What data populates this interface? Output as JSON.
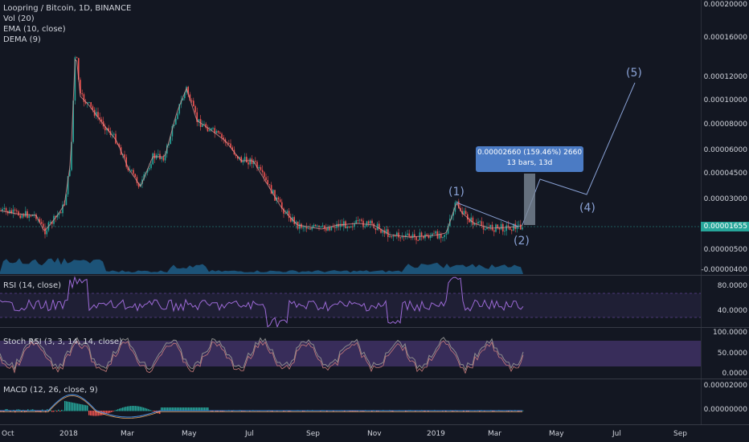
{
  "header": {
    "symbol_line": "Loopring / Bitcoin, 1D, BINANCE",
    "vol_line": "Vol (20)",
    "ema_line": "EMA (10, close)",
    "dema_line": "DEMA (9)"
  },
  "price_axis": {
    "ticks": [
      "0.00020000",
      "0.00016000",
      "0.00012000",
      "0.00010000",
      "0.00008000",
      "0.00006000",
      "0.00004500",
      "0.00003000",
      "0.00001655",
      "0.00000500",
      "-0.00000400"
    ],
    "current_price": "0.00001655"
  },
  "rsi": {
    "label": "RSI (14, close)",
    "ticks": [
      "80.0000",
      "40.0000"
    ]
  },
  "stoch": {
    "label": "Stoch RSI (3, 3, 14, 14, close)",
    "ticks": [
      "100.0000",
      "50.0000",
      "0.0000"
    ]
  },
  "macd": {
    "label": "MACD (12, 26, close, 9)",
    "ticks": [
      "0.00002000",
      "0.00000000"
    ]
  },
  "time_axis": [
    "Oct",
    "2018",
    "Mar",
    "May",
    "Jul",
    "Sep",
    "Nov",
    "2019",
    "Mar",
    "May",
    "Jul",
    "Sep"
  ],
  "drawing": {
    "measure_line1": "0.00002660 (159.46%) 2660",
    "measure_line2": "13 bars, 13d",
    "waves": [
      "(1)",
      "(2)",
      "(4)",
      "(5)"
    ]
  },
  "colors": {
    "bull": "#26a69a",
    "bear": "#ef5350",
    "background": "#131722",
    "rsi": "#7e57c2",
    "volume": "#1e5a82",
    "wave": "#8aa2d6"
  }
}
